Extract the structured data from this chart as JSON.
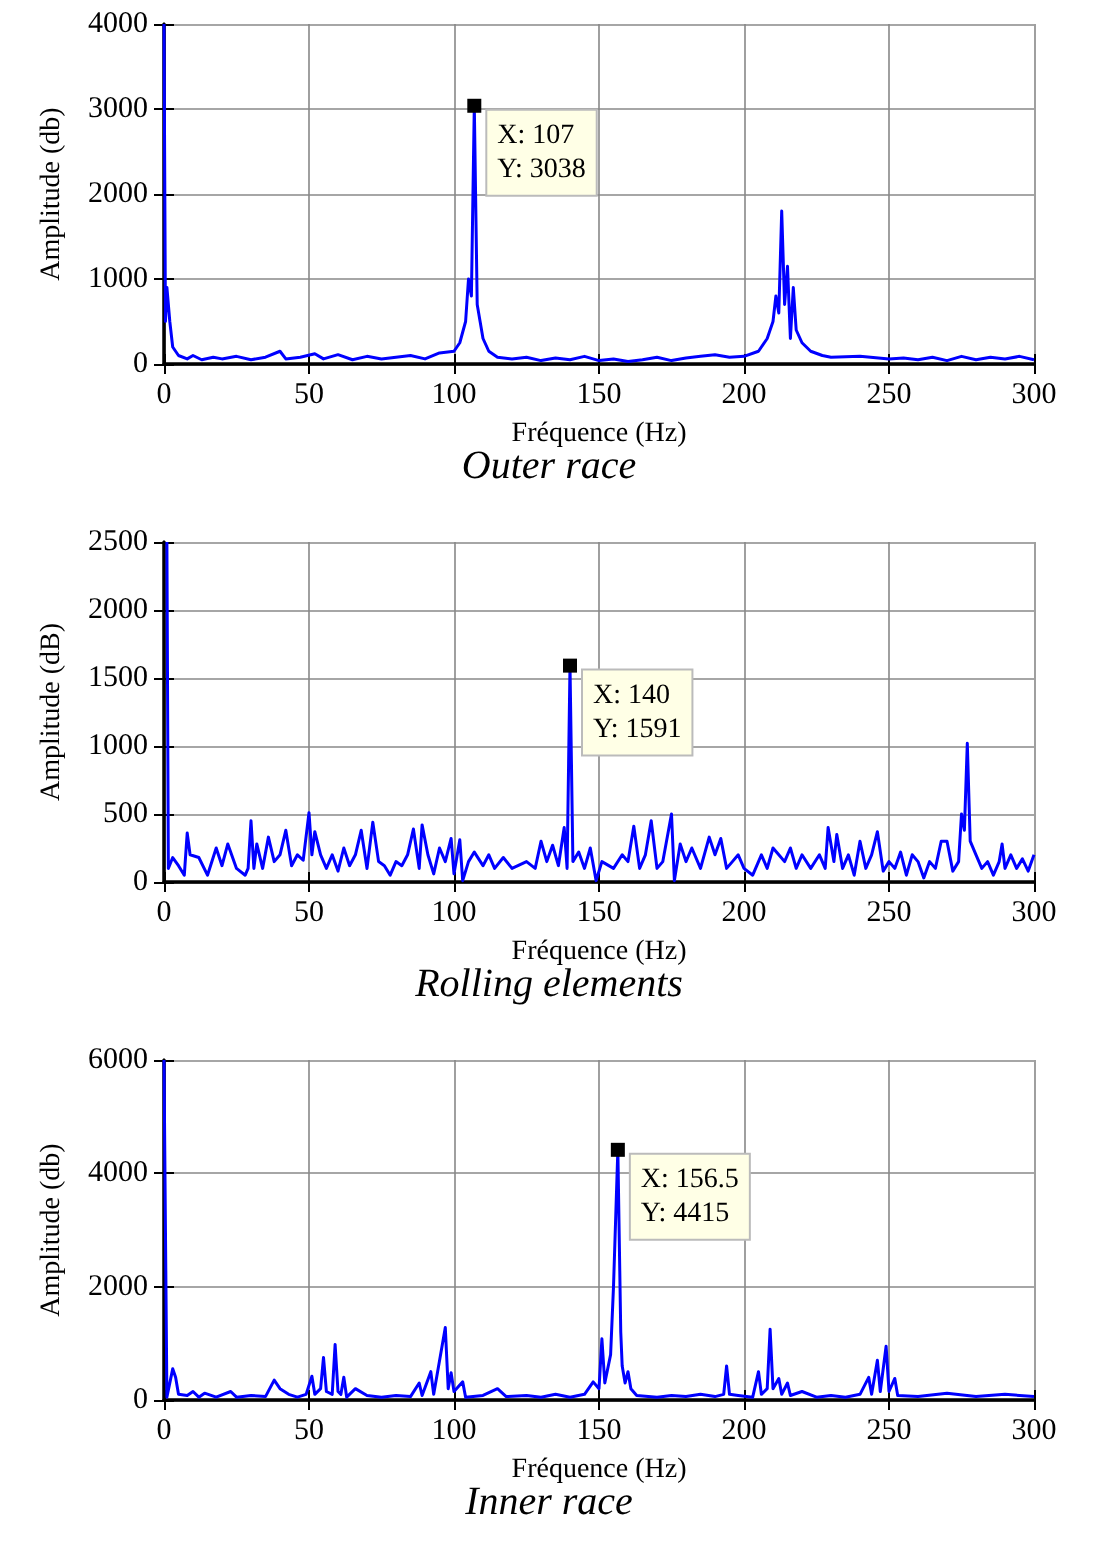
{
  "chart_data": [
    {
      "type": "line",
      "title": "Outer race",
      "xlabel": "Fréquence (Hz)",
      "ylabel": "Amplitude (db)",
      "xlim": [
        0,
        300
      ],
      "ylim": [
        0,
        4000
      ],
      "xticks": [
        0,
        50,
        100,
        150,
        200,
        250,
        300
      ],
      "yticks": [
        0,
        1000,
        2000,
        3000,
        4000
      ],
      "grid": true,
      "annotations": [
        {
          "text": "X: 107\nY: 3038",
          "x": 107,
          "y": 3038
        }
      ],
      "series": [
        {
          "color": "#0000ff",
          "x": [
            0,
            0.5,
            1,
            2,
            3,
            5,
            8,
            10,
            13,
            17,
            20,
            25,
            30,
            35,
            40,
            42,
            47,
            52,
            55,
            60,
            65,
            70,
            75,
            80,
            85,
            90,
            95,
            100,
            102,
            104,
            105,
            106,
            107,
            108,
            109,
            110,
            112,
            115,
            120,
            125,
            130,
            135,
            140,
            145,
            150,
            155,
            160,
            165,
            170,
            175,
            180,
            185,
            190,
            195,
            200,
            205,
            208,
            210,
            211,
            212,
            213,
            214,
            215,
            216,
            217,
            218,
            220,
            223,
            227,
            230,
            240,
            250,
            255,
            260,
            265,
            270,
            275,
            280,
            285,
            290,
            295,
            300
          ],
          "values": [
            4000,
            500,
            900,
            500,
            200,
            100,
            60,
            100,
            50,
            80,
            60,
            90,
            50,
            80,
            150,
            60,
            80,
            120,
            60,
            110,
            50,
            90,
            60,
            80,
            100,
            60,
            130,
            150,
            250,
            500,
            1000,
            800,
            3038,
            700,
            500,
            300,
            150,
            80,
            60,
            80,
            40,
            70,
            50,
            90,
            40,
            60,
            30,
            50,
            80,
            40,
            70,
            90,
            110,
            80,
            90,
            150,
            300,
            500,
            800,
            600,
            1800,
            700,
            1150,
            300,
            900,
            400,
            250,
            150,
            100,
            80,
            90,
            60,
            70,
            50,
            80,
            40,
            90,
            50,
            80,
            60,
            90,
            50
          ]
        }
      ]
    },
    {
      "type": "line",
      "title": "Rolling elements",
      "xlabel": "Fréquence (Hz)",
      "ylabel": "Amplitude (dB)",
      "xlim": [
        0,
        300
      ],
      "ylim": [
        0,
        2500
      ],
      "xticks": [
        0,
        50,
        100,
        150,
        200,
        250,
        300
      ],
      "yticks": [
        0,
        500,
        1000,
        1500,
        2000,
        2500
      ],
      "grid": true,
      "annotations": [
        {
          "text": "X: 140\nY: 1591",
          "x": 140,
          "y": 1591
        }
      ],
      "series": [
        {
          "color": "#0000ff",
          "x": [
            1,
            1.5,
            3,
            5,
            7,
            8,
            9,
            12,
            15,
            18,
            20,
            22,
            25,
            28,
            29,
            30,
            31,
            32,
            34,
            36,
            38,
            40,
            42,
            44,
            46,
            48,
            50,
            51,
            52,
            54,
            56,
            58,
            60,
            62,
            64,
            66,
            68,
            70,
            72,
            74,
            76,
            78,
            80,
            82,
            84,
            86,
            88,
            89,
            91,
            93,
            95,
            97,
            99,
            100,
            102,
            103,
            105,
            107,
            110,
            112,
            114,
            117,
            120,
            125,
            128,
            130,
            132,
            134,
            136,
            138,
            139,
            140,
            141,
            143,
            145,
            147,
            149,
            151,
            155,
            158,
            160,
            162,
            164,
            166,
            168,
            170,
            172,
            175,
            176,
            178,
            180,
            182,
            185,
            188,
            190,
            192,
            194,
            196,
            198,
            200,
            203,
            206,
            208,
            210,
            212,
            214,
            216,
            218,
            220,
            223,
            226,
            228,
            229,
            231,
            232,
            234,
            236,
            238,
            240,
            242,
            244,
            246,
            248,
            250,
            252,
            254,
            256,
            258,
            260,
            262,
            264,
            266,
            268,
            270,
            272,
            274,
            275,
            276,
            277,
            278,
            280,
            282,
            284,
            286,
            288,
            289,
            290,
            292,
            294,
            296,
            298,
            300
          ],
          "values": [
            2500,
            100,
            180,
            120,
            50,
            360,
            200,
            180,
            50,
            250,
            120,
            280,
            100,
            50,
            100,
            450,
            100,
            280,
            100,
            330,
            150,
            200,
            380,
            120,
            200,
            160,
            510,
            200,
            370,
            200,
            100,
            200,
            80,
            250,
            120,
            200,
            380,
            100,
            440,
            150,
            120,
            50,
            150,
            120,
            200,
            390,
            100,
            420,
            200,
            60,
            250,
            150,
            320,
            60,
            310,
            10,
            150,
            220,
            120,
            200,
            100,
            180,
            100,
            150,
            100,
            300,
            150,
            270,
            120,
            400,
            100,
            1591,
            150,
            220,
            100,
            250,
            10,
            150,
            100,
            200,
            150,
            410,
            100,
            200,
            450,
            100,
            150,
            500,
            10,
            280,
            150,
            250,
            100,
            330,
            200,
            320,
            100,
            150,
            200,
            100,
            50,
            200,
            100,
            250,
            200,
            150,
            250,
            100,
            200,
            100,
            200,
            100,
            400,
            150,
            350,
            100,
            200,
            50,
            300,
            100,
            200,
            370,
            80,
            150,
            100,
            220,
            50,
            200,
            150,
            30,
            150,
            100,
            300,
            300,
            80,
            150,
            500,
            380,
            1020,
            300,
            200,
            100,
            150,
            50,
            150,
            280,
            100,
            200,
            100,
            170,
            80,
            200
          ]
        }
      ]
    },
    {
      "type": "line",
      "title": "Inner race",
      "xlabel": "Fréquence (Hz)",
      "ylabel": "Amplitude (db)",
      "xlim": [
        0,
        300
      ],
      "ylim": [
        0,
        6000
      ],
      "xticks": [
        0,
        50,
        100,
        150,
        200,
        250,
        300
      ],
      "yticks": [
        0,
        2000,
        4000,
        6000
      ],
      "grid": true,
      "annotations": [
        {
          "text": "X: 156.5\nY: 4415",
          "x": 156.5,
          "y": 4415
        }
      ],
      "series": [
        {
          "color": "#0000ff",
          "x": [
            0,
            1,
            3,
            4,
            5,
            8,
            10,
            12,
            14,
            18,
            23,
            25,
            30,
            35,
            38,
            40,
            43,
            46,
            49,
            51,
            52,
            54,
            55,
            56,
            58,
            59,
            60,
            61,
            62,
            63,
            66,
            70,
            75,
            80,
            85,
            88,
            89,
            92,
            93,
            97,
            98,
            99,
            100,
            103,
            104,
            110,
            115,
            118,
            125,
            130,
            135,
            140,
            145,
            148,
            150,
            151,
            152,
            154,
            155,
            156.5,
            157.5,
            158,
            159,
            160,
            161,
            163,
            170,
            175,
            180,
            185,
            190,
            193,
            194,
            195,
            198,
            203,
            205,
            206,
            208,
            209,
            210,
            212,
            213,
            215,
            216,
            220,
            225,
            230,
            235,
            240,
            243,
            244,
            246,
            247,
            249,
            250,
            252,
            253,
            260,
            270,
            280,
            290,
            300
          ],
          "values": [
            6000,
            50,
            550,
            400,
            100,
            80,
            150,
            50,
            120,
            50,
            150,
            50,
            80,
            60,
            350,
            200,
            100,
            50,
            100,
            420,
            100,
            200,
            750,
            150,
            100,
            980,
            150,
            100,
            400,
            50,
            200,
            80,
            50,
            80,
            60,
            300,
            80,
            500,
            100,
            1280,
            200,
            480,
            150,
            320,
            50,
            80,
            200,
            60,
            80,
            50,
            100,
            50,
            100,
            320,
            200,
            1080,
            300,
            800,
            2000,
            4415,
            1200,
            600,
            300,
            500,
            200,
            80,
            50,
            80,
            60,
            100,
            60,
            100,
            600,
            100,
            80,
            50,
            500,
            100,
            200,
            1250,
            200,
            380,
            100,
            300,
            80,
            150,
            50,
            80,
            50,
            100,
            400,
            100,
            700,
            150,
            950,
            150,
            380,
            80,
            60,
            120,
            60,
            100,
            60
          ]
        }
      ]
    }
  ]
}
